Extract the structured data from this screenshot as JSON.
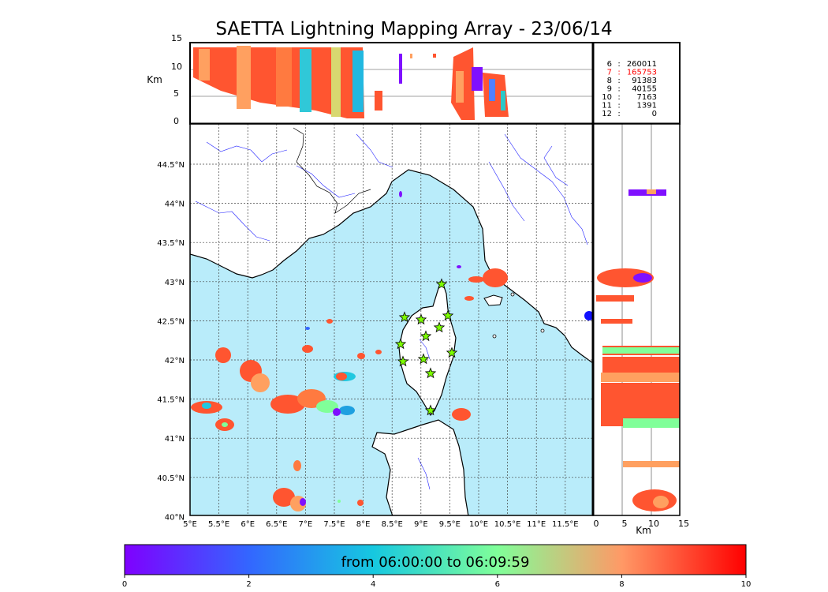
{
  "title": "SAETTA Lightning Mapping Array - 23/06/14",
  "top_panel": {
    "ylabel": "Km",
    "y_ticks": [
      "15",
      "10",
      "5",
      "0"
    ],
    "levels_legend": [
      {
        "level": "6",
        "count": "260011",
        "color": "#000000"
      },
      {
        "level": "7",
        "count": "165753",
        "color": "#ff0000"
      },
      {
        "level": "8",
        "count": "91383",
        "color": "#000000"
      },
      {
        "level": "9",
        "count": "40155",
        "color": "#000000"
      },
      {
        "level": "10",
        "count": "7163",
        "color": "#000000"
      },
      {
        "level": "11",
        "count": "1391",
        "color": "#000000"
      },
      {
        "level": "12",
        "count": "0",
        "color": "#000000"
      }
    ]
  },
  "map": {
    "lon_ticks": [
      "5°E",
      "5.5°E",
      "6°E",
      "6.5°E",
      "7°E",
      "7.5°E",
      "8°E",
      "8.5°E",
      "9°E",
      "9.5°E",
      "10°E",
      "10.5°E",
      "11°E",
      "11.5°E"
    ],
    "lat_ticks": [
      "44.5°N",
      "44°N",
      "43.5°N",
      "43°N",
      "42.5°N",
      "42°N",
      "41.5°N",
      "41°N",
      "40.5°N",
      "40°N"
    ],
    "sea_color": "#b9ecfa",
    "land_color": "#ffffff",
    "station_color": "#7cfc00"
  },
  "side_panel": {
    "xlabel": "Km",
    "x_ticks": [
      "0",
      "5",
      "10",
      "15"
    ]
  },
  "colorbar": {
    "label": "from 06:00:00 to 06:09:59",
    "ticks": [
      "0",
      "2",
      "4",
      "6",
      "8",
      "10"
    ],
    "range": [
      0,
      10
    ]
  }
}
